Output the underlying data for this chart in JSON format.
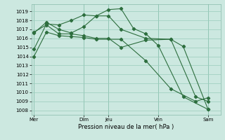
{
  "background_color": "#cce8e0",
  "grid_color": "#99ccbb",
  "line_color": "#2d6e3e",
  "xlabel": "Pression niveau de la mer( hPa )",
  "ylim": [
    1007.5,
    1019.8
  ],
  "yticks": [
    1008,
    1009,
    1010,
    1011,
    1012,
    1013,
    1014,
    1015,
    1016,
    1017,
    1018,
    1019
  ],
  "x_day_labels": [
    "Mer",
    "",
    "Dim",
    "Jeu",
    "",
    "Ven",
    "",
    "Sam"
  ],
  "x_day_positions": [
    0,
    1,
    2,
    3,
    4,
    5,
    6,
    7
  ],
  "vline_positions": [
    0,
    2,
    3,
    5,
    7
  ],
  "series": [
    [
      1014.0,
      1016.7,
      1016.3,
      1016.2,
      1016.1,
      1015.9,
      1015.9,
      1013.5,
      1010.4,
      1009.0,
      1009.4
    ],
    [
      1014.8,
      1017.6,
      1017.5,
      1018.0,
      1018.6,
      1018.5,
      1019.2,
      1019.3,
      1017.1,
      1016.5,
      1015.2,
      1009.5,
      1008.1
    ],
    [
      1016.6,
      1017.8,
      1017.0,
      1016.6,
      1017.3,
      1018.5,
      1018.5,
      1017.0,
      1016.0,
      1015.9,
      1015.1,
      1008.1
    ],
    [
      1016.7,
      1017.5,
      1016.5,
      1016.5,
      1016.3,
      1016.0,
      1016.0,
      1015.0,
      1015.8,
      1015.9,
      1009.5,
      1009.0
    ]
  ],
  "x_values": [
    [
      0.0,
      0.5,
      1.0,
      1.5,
      2.0,
      2.5,
      3.5,
      4.5,
      5.5,
      6.5,
      7.0
    ],
    [
      0.0,
      0.5,
      1.0,
      1.5,
      2.0,
      2.5,
      3.0,
      3.5,
      4.0,
      4.5,
      5.0,
      6.0,
      7.0
    ],
    [
      0.0,
      0.5,
      1.0,
      1.5,
      2.0,
      2.5,
      3.0,
      3.5,
      4.5,
      5.5,
      6.0,
      7.0
    ],
    [
      0.0,
      0.5,
      1.0,
      1.5,
      2.0,
      2.5,
      3.0,
      3.5,
      4.5,
      5.5,
      6.5,
      7.0
    ]
  ],
  "xlim": [
    -0.1,
    7.5
  ],
  "ylabel_fontsize": 5.0,
  "xlabel_fontsize": 6.0,
  "tick_fontsize": 5.0
}
